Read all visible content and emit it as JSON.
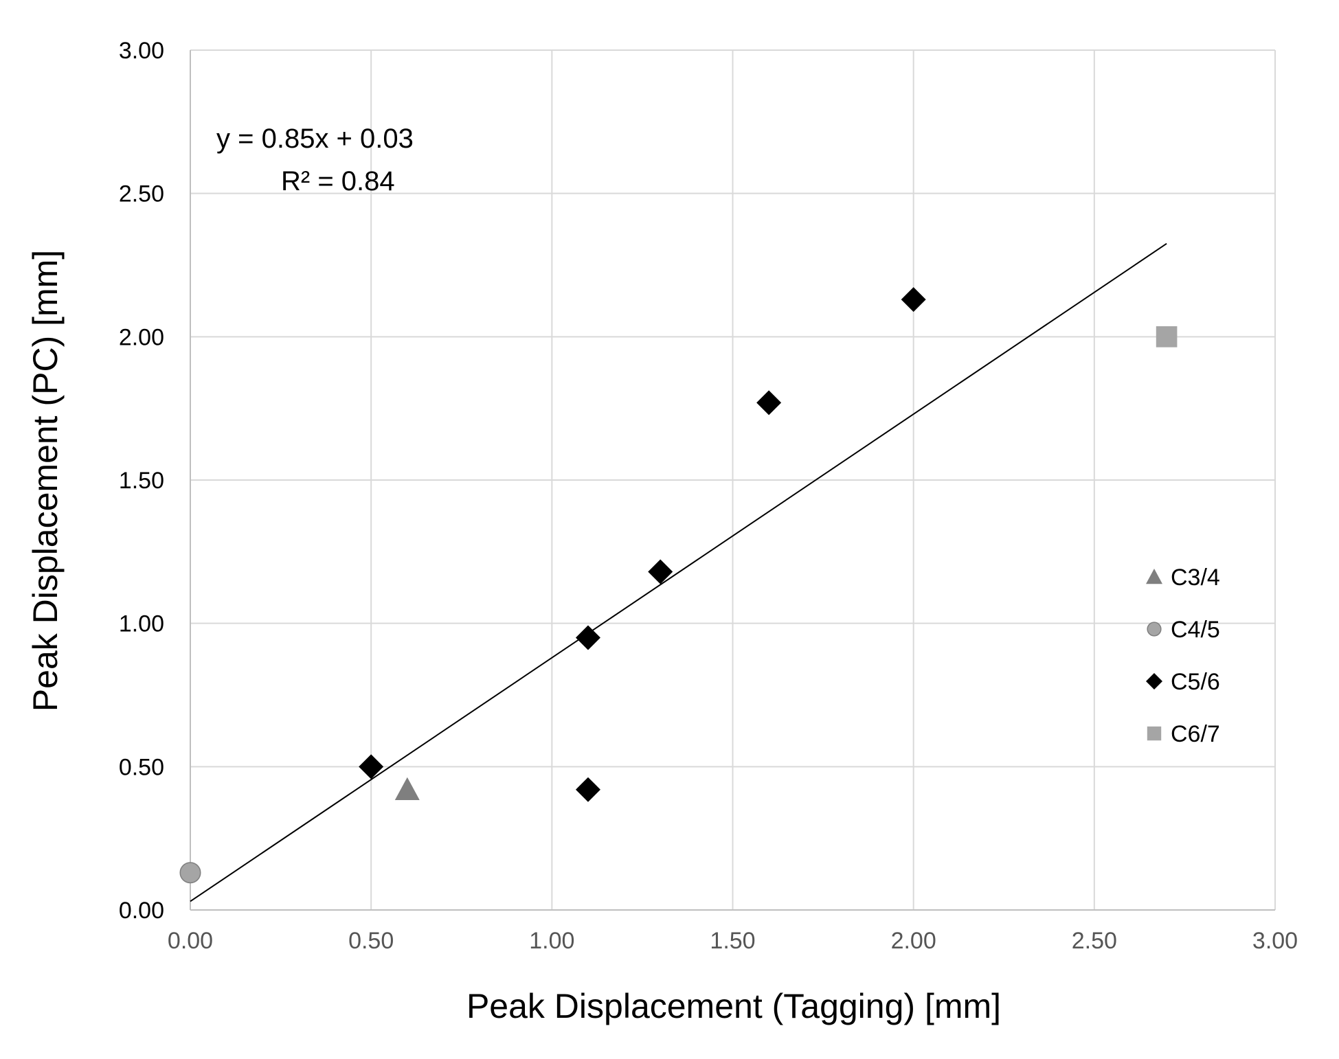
{
  "chart_data": {
    "type": "scatter",
    "xlabel": "Peak Displacement (Tagging) [mm]",
    "ylabel": "Peak Displacement (PC) [mm]",
    "xlim": [
      0,
      3
    ],
    "ylim": [
      0,
      3
    ],
    "x_ticks": [
      "0.00",
      "0.50",
      "1.00",
      "1.50",
      "2.00",
      "2.50",
      "3.00"
    ],
    "y_ticks": [
      "0.00",
      "0.50",
      "1.00",
      "1.50",
      "2.00",
      "2.50",
      "3.00"
    ],
    "grid": true,
    "legend_position": "right",
    "series": [
      {
        "name": "C3/4",
        "marker": "triangle",
        "color": "#7f7f7f",
        "points": [
          [
            0.6,
            0.42
          ]
        ]
      },
      {
        "name": "C4/5",
        "marker": "circle",
        "color": "#a5a5a5",
        "points": [
          [
            0.0,
            0.13
          ]
        ]
      },
      {
        "name": "C5/6",
        "marker": "diamond",
        "color": "#000000",
        "points": [
          [
            0.5,
            0.5
          ],
          [
            1.1,
            0.42
          ],
          [
            1.1,
            0.95
          ],
          [
            1.3,
            1.18
          ],
          [
            1.6,
            1.77
          ],
          [
            2.0,
            2.13
          ]
        ]
      },
      {
        "name": "C6/7",
        "marker": "square",
        "color": "#a5a5a5",
        "points": [
          [
            2.7,
            2.0
          ]
        ]
      }
    ],
    "trendline": {
      "slope": 0.85,
      "intercept": 0.03,
      "x_range": [
        0,
        2.7
      ],
      "equation": "y = 0.85x + 0.03",
      "r2": "R² = 0.84"
    }
  }
}
